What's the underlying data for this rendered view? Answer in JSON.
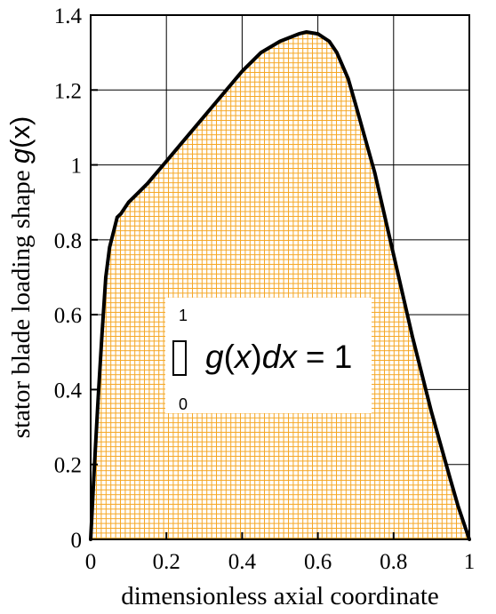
{
  "chart_data": {
    "type": "area",
    "xlabel": "dimensionless axial coordinate",
    "ylabel": "stator blade loading shape g(x)",
    "ylabel_plain": "stator blade loading shape ",
    "ylabel_func": "g",
    "ylabel_arg": "(x)",
    "xlim": [
      0,
      1
    ],
    "ylim": [
      0,
      1.4
    ],
    "xticks": [
      0,
      0.2,
      0.4,
      0.6,
      0.8,
      1
    ],
    "xtick_labels": [
      "0",
      "0.2",
      "0.4",
      "0.6",
      "0.8",
      "1"
    ],
    "yticks": [
      0,
      0.2,
      0.4,
      0.6,
      0.8,
      1.0,
      1.2,
      1.4
    ],
    "ytick_labels": [
      "0",
      "0.2",
      "0.4",
      "0.6",
      "0.8",
      "1",
      "1.2",
      "1.4"
    ],
    "grid": true,
    "fill_color": "#f5a623",
    "line_color": "#000000",
    "series": [
      {
        "x": [
          0,
          0.01,
          0.02,
          0.03,
          0.04,
          0.05,
          0.06,
          0.07,
          0.08,
          0.1,
          0.12,
          0.15,
          0.2,
          0.25,
          0.3,
          0.35,
          0.4,
          0.45,
          0.5,
          0.55,
          0.57,
          0.6,
          0.63,
          0.65,
          0.68,
          0.7,
          0.75,
          0.8,
          0.85,
          0.9,
          0.95,
          0.97,
          0.99,
          1.0
        ],
        "y": [
          0,
          0.2,
          0.38,
          0.55,
          0.7,
          0.78,
          0.82,
          0.86,
          0.87,
          0.9,
          0.92,
          0.95,
          1.01,
          1.07,
          1.13,
          1.19,
          1.25,
          1.3,
          1.33,
          1.35,
          1.355,
          1.35,
          1.33,
          1.3,
          1.23,
          1.16,
          0.98,
          0.76,
          0.54,
          0.34,
          0.16,
          0.09,
          0.03,
          0
        ]
      }
    ],
    "annotation": {
      "upper": "1",
      "lower": "0",
      "integral_symbol": "∫",
      "func": "g",
      "arg": "(x)",
      "d": "d",
      "var": "x",
      "rhs": "= 1"
    }
  }
}
